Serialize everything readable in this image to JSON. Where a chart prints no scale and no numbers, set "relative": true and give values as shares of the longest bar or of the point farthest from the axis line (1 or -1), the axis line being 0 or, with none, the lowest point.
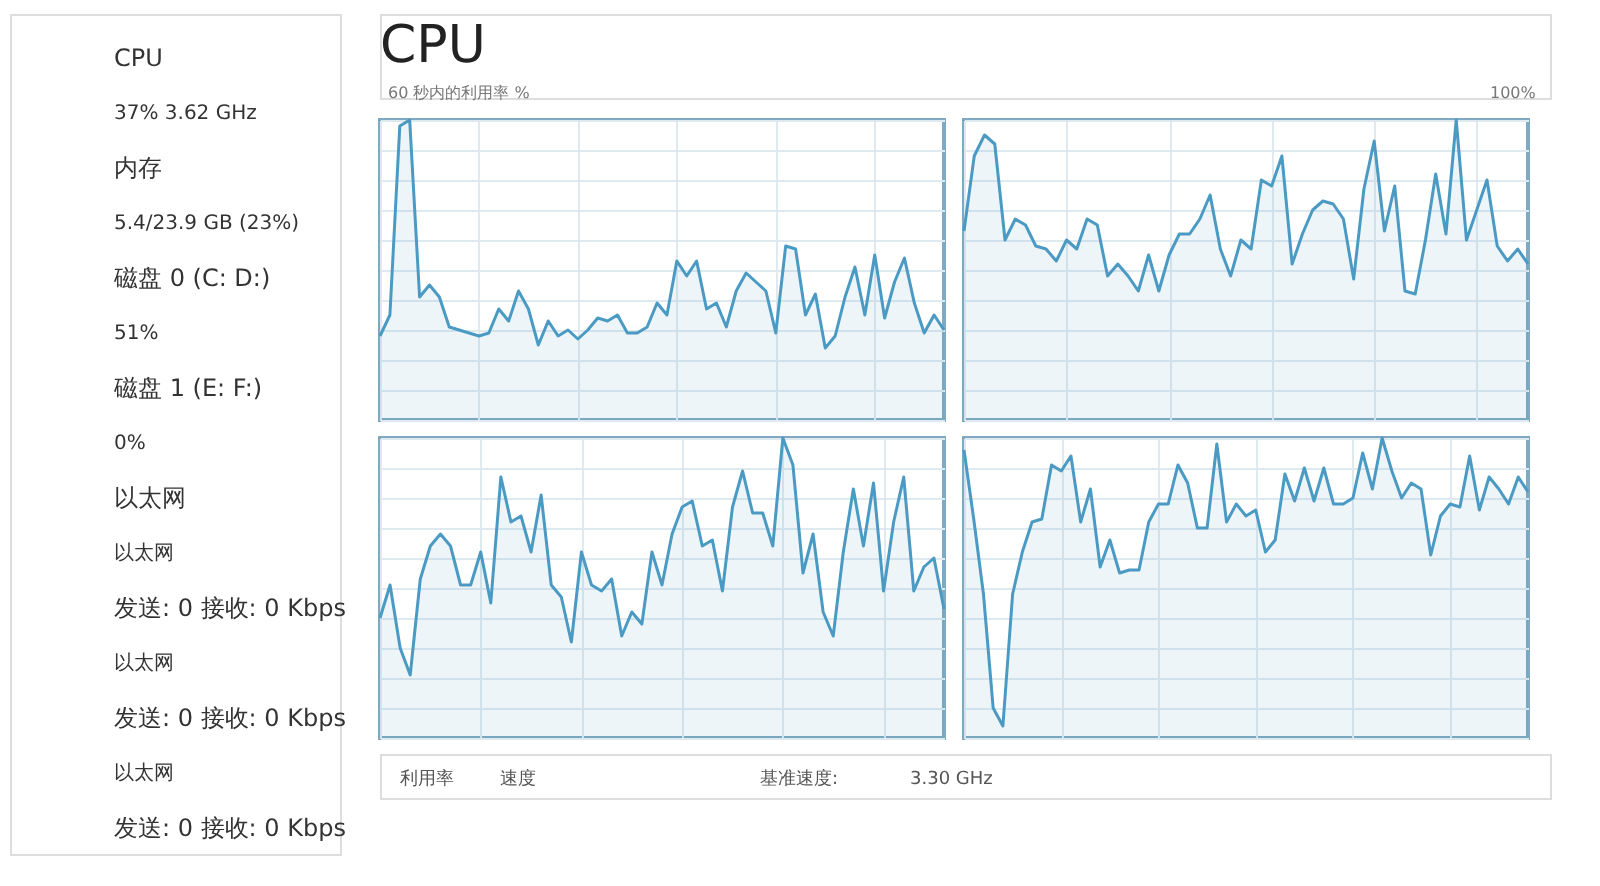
{
  "chart_data": [
    {
      "type": "other",
      "annotations": [
        "CPU",
        "37% 3.62 GHz",
        "内存",
        "5.4/23.9 GB (23%)",
        "磁盘 0 (C: D:)",
        "51%",
        "磁盘 1 (E: F:)",
        "0%",
        "以太网",
        "以太网",
        "发送: 0 接收: 0 Kbps",
        "以太网",
        "发送: 0 接收: 0 Kbps",
        "以太网",
        "发送: 0 接收: 0 Kbps"
      ]
    },
    {
      "type": "other",
      "title": "CPU",
      "annotations": [
        "60 秒内的利用率 %",
        "100%"
      ]
    },
    {
      "type": "area",
      "relative": true,
      "grid": true,
      "tick_labels": false,
      "categories": [
        null,
        null,
        null,
        null,
        null,
        null,
        null,
        null,
        null,
        null,
        null,
        null,
        null,
        null,
        null,
        null,
        null,
        null,
        null,
        null,
        null,
        null,
        null,
        null,
        null,
        null,
        null,
        null,
        null,
        null,
        null,
        null,
        null,
        null,
        null,
        null,
        null,
        null,
        null,
        null,
        null,
        null,
        null,
        null,
        null,
        null,
        null,
        null,
        null,
        null,
        null,
        null,
        null,
        null,
        null,
        null,
        null,
        null
      ],
      "series": [
        {
          "color": "#4b9ac4",
          "values": [
            0.28,
            0.35,
            0.98,
            1,
            0.41,
            0.45,
            0.41,
            0.31,
            0.3,
            0.29,
            0.28,
            0.29,
            0.37,
            0.33,
            0.43,
            0.37,
            0.25,
            0.33,
            0.28,
            0.3,
            0.27,
            0.3,
            0.34,
            0.33,
            0.35,
            0.29,
            0.29,
            0.31,
            0.39,
            0.35,
            0.53,
            0.48,
            0.53,
            0.37,
            0.39,
            0.31,
            0.43,
            0.49,
            0.46,
            0.43,
            0.29,
            0.58,
            0.57,
            0.35,
            0.42,
            0.24,
            0.28,
            0.41,
            0.51,
            0.35,
            0.55,
            0.34,
            0.46,
            0.54,
            0.39,
            0.29,
            0.35,
            0.3
          ]
        }
      ]
    },
    {
      "type": "area",
      "relative": true,
      "grid": true,
      "tick_labels": false,
      "categories": [
        null,
        null,
        null,
        null,
        null,
        null,
        null,
        null,
        null,
        null,
        null,
        null,
        null,
        null,
        null,
        null,
        null,
        null,
        null,
        null,
        null,
        null,
        null,
        null,
        null,
        null,
        null,
        null,
        null,
        null,
        null,
        null,
        null,
        null,
        null,
        null,
        null,
        null,
        null,
        null,
        null,
        null,
        null,
        null,
        null,
        null,
        null,
        null,
        null,
        null,
        null,
        null,
        null,
        null,
        null,
        null
      ],
      "series": [
        {
          "color": "#4b9ac4",
          "values": [
            0.63,
            0.88,
            0.95,
            0.92,
            0.6,
            0.67,
            0.65,
            0.58,
            0.57,
            0.53,
            0.6,
            0.57,
            0.67,
            0.65,
            0.48,
            0.52,
            0.48,
            0.43,
            0.55,
            0.43,
            0.55,
            0.62,
            0.62,
            0.67,
            0.75,
            0.57,
            0.48,
            0.6,
            0.57,
            0.8,
            0.78,
            0.88,
            0.52,
            0.62,
            0.7,
            0.73,
            0.72,
            0.67,
            0.47,
            0.77,
            0.93,
            0.63,
            0.78,
            0.43,
            0.42,
            0.6,
            0.82,
            0.62,
            1,
            0.6,
            0.7,
            0.8,
            0.58,
            0.53,
            0.57,
            0.52
          ]
        }
      ]
    },
    {
      "type": "area",
      "relative": true,
      "grid": true,
      "tick_labels": false,
      "categories": [
        null,
        null,
        null,
        null,
        null,
        null,
        null,
        null,
        null,
        null,
        null,
        null,
        null,
        null,
        null,
        null,
        null,
        null,
        null,
        null,
        null,
        null,
        null,
        null,
        null,
        null,
        null,
        null,
        null,
        null,
        null,
        null,
        null,
        null,
        null,
        null,
        null,
        null,
        null,
        null,
        null,
        null,
        null,
        null,
        null,
        null,
        null,
        null,
        null,
        null,
        null,
        null,
        null,
        null,
        null,
        null,
        null
      ],
      "series": [
        {
          "color": "#4b9ac4",
          "values": [
            0.4,
            0.51,
            0.3,
            0.21,
            0.53,
            0.64,
            0.68,
            0.64,
            0.51,
            0.51,
            0.62,
            0.45,
            0.87,
            0.72,
            0.74,
            0.62,
            0.81,
            0.51,
            0.47,
            0.32,
            0.62,
            0.51,
            0.49,
            0.53,
            0.34,
            0.42,
            0.38,
            0.62,
            0.51,
            0.68,
            0.77,
            0.79,
            0.64,
            0.66,
            0.49,
            0.77,
            0.89,
            0.75,
            0.75,
            0.64,
            1,
            0.91,
            0.55,
            0.68,
            0.42,
            0.34,
            0.62,
            0.83,
            0.64,
            0.85,
            0.49,
            0.72,
            0.87,
            0.49,
            0.57,
            0.6,
            0.43
          ]
        }
      ]
    },
    {
      "type": "area",
      "relative": true,
      "grid": true,
      "tick_labels": false,
      "categories": [
        null,
        null,
        null,
        null,
        null,
        null,
        null,
        null,
        null,
        null,
        null,
        null,
        null,
        null,
        null,
        null,
        null,
        null,
        null,
        null,
        null,
        null,
        null,
        null,
        null,
        null,
        null,
        null,
        null,
        null,
        null,
        null,
        null,
        null,
        null,
        null,
        null,
        null,
        null,
        null,
        null,
        null,
        null,
        null,
        null,
        null,
        null,
        null,
        null,
        null,
        null,
        null,
        null,
        null,
        null,
        null,
        null,
        null,
        null
      ],
      "series": [
        {
          "color": "#4b9ac4",
          "values": [
            0.96,
            0.73,
            0.48,
            0.1,
            0.04,
            0.48,
            0.62,
            0.72,
            0.73,
            0.91,
            0.89,
            0.94,
            0.72,
            0.83,
            0.57,
            0.66,
            0.55,
            0.56,
            0.56,
            0.72,
            0.78,
            0.78,
            0.91,
            0.85,
            0.7,
            0.7,
            0.98,
            0.72,
            0.78,
            0.74,
            0.76,
            0.62,
            0.66,
            0.88,
            0.79,
            0.9,
            0.79,
            0.9,
            0.78,
            0.78,
            0.8,
            0.95,
            0.83,
            1,
            0.89,
            0.8,
            0.85,
            0.83,
            0.61,
            0.74,
            0.78,
            0.77,
            0.94,
            0.76,
            0.87,
            0.83,
            0.78,
            0.87,
            0.82
          ]
        }
      ]
    },
    {
      "type": "other",
      "annotations": [
        "利用率",
        "速度",
        "基准速度:",
        "3.30 GHz"
      ]
    }
  ]
}
